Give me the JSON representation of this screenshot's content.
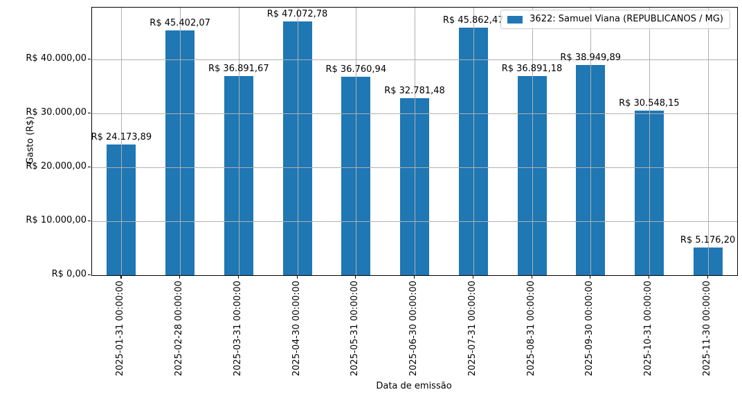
{
  "figure": {
    "background": "#ffffff"
  },
  "legend": {
    "series_label": "3622: Samuel Viana (REPUBLICANOS / MG)",
    "swatch_color": "#1f77b4",
    "position": "upper right"
  },
  "chart_data": {
    "type": "bar",
    "title": "",
    "xlabel": "Data de emissão",
    "ylabel": "Gasto (R$)",
    "series_name": "3622: Samuel Viana (REPUBLICANOS / MG)",
    "categories": [
      "2025-01-31 00:00:00",
      "2025-02-28 00:00:00",
      "2025-03-31 00:00:00",
      "2025-04-30 00:00:00",
      "2025-05-31 00:00:00",
      "2025-06-30 00:00:00",
      "2025-07-31 00:00:00",
      "2025-08-31 00:00:00",
      "2025-09-30 00:00:00",
      "2025-10-31 00:00:00",
      "2025-11-30 00:00:00"
    ],
    "values": [
      24173.89,
      45402.07,
      36891.67,
      47072.78,
      36760.94,
      32781.48,
      45862.47,
      36891.18,
      38949.89,
      30548.15,
      5176.2
    ],
    "bar_labels": [
      "R$ 24.173,89",
      "R$ 45.402,07",
      "R$ 36.891,67",
      "R$ 47.072,78",
      "R$ 36.760,94",
      "R$ 32.781,48",
      "R$ 45.862,47",
      "R$ 36.891,18",
      "R$ 38.949,89",
      "R$ 30.548,15",
      "R$ 5.176,20"
    ],
    "yticks": [
      {
        "value": 0,
        "label": "R$ 0,00"
      },
      {
        "value": 10000,
        "label": "R$ 10.000,00"
      },
      {
        "value": 20000,
        "label": "R$ 20.000,00"
      },
      {
        "value": 30000,
        "label": "R$ 30.000,00"
      },
      {
        "value": 40000,
        "label": "R$ 40.000,00"
      }
    ],
    "ylim": [
      0,
      49615
    ],
    "grid": true,
    "grid_color": "#b0b0b0",
    "bar_color": "#1f77b4",
    "legend_position": "upper right"
  }
}
